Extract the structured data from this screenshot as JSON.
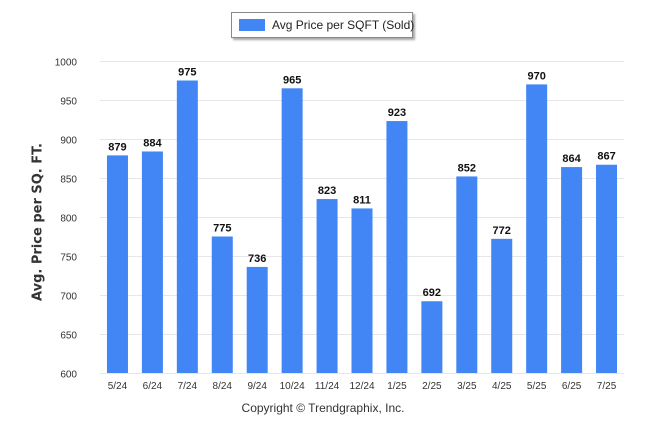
{
  "chart_data": {
    "type": "bar",
    "categories": [
      "5/24",
      "6/24",
      "7/24",
      "8/24",
      "9/24",
      "10/24",
      "11/24",
      "12/24",
      "1/25",
      "2/25",
      "3/25",
      "4/25",
      "5/25",
      "6/25",
      "7/25"
    ],
    "series": [
      {
        "name": "Avg Price per SQFT (Sold)",
        "values": [
          879,
          884,
          975,
          775,
          736,
          965,
          823,
          811,
          923,
          692,
          852,
          772,
          970,
          864,
          867
        ]
      }
    ],
    "ylabel": "Avg. Price per SQ. FT.",
    "xlabel": "",
    "ylim": [
      600,
      1000
    ],
    "yticks": [
      600,
      650,
      700,
      750,
      800,
      850,
      900,
      950,
      1000
    ],
    "grid": true,
    "data_labels": true,
    "legend_position": "top-center",
    "colors": {
      "bar": "#4285f4"
    }
  },
  "legend": {
    "label": "Avg Price per SQFT (Sold)"
  },
  "footer": {
    "copyright": "Copyright © Trendgraphix, Inc."
  }
}
